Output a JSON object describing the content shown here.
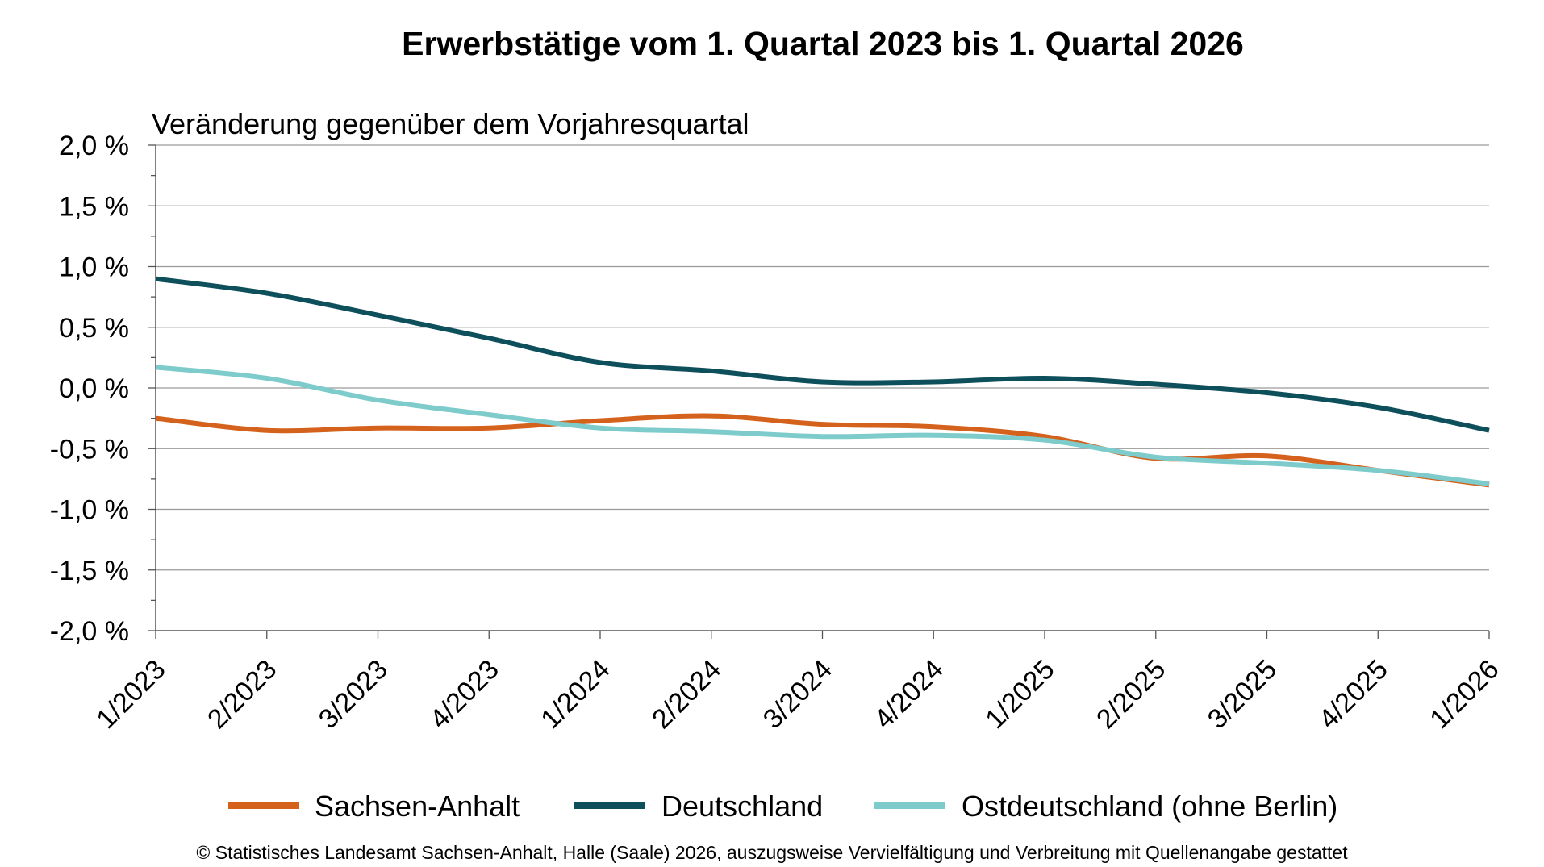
{
  "chart_data": {
    "type": "line",
    "title": "Erwerbstätige vom 1. Quartal 2023 bis 1. Quartal 2026",
    "subtitle": "Veränderung gegenüber dem Vorjahresquartal",
    "xlabel": "",
    "ylabel": "",
    "categories": [
      "1/2023",
      "2/2023",
      "3/2023",
      "4/2023",
      "1/2024",
      "2/2024",
      "3/2024",
      "4/2024",
      "1/2025",
      "2/2025",
      "3/2025",
      "4/2025",
      "1/2026"
    ],
    "ylim": [
      -2.0,
      2.0
    ],
    "yticks": [
      2.0,
      1.5,
      1.0,
      0.5,
      0.0,
      -0.5,
      -1.0,
      -1.5,
      -2.0
    ],
    "ytick_labels": [
      "2,0 %",
      "1,5 %",
      "1,0 %",
      "0,5 %",
      "0,0 %",
      "-0,5 %",
      "-1,0 %",
      "-1,5 %",
      "-2,0 %"
    ],
    "grid": true,
    "legend_position": "bottom",
    "series": [
      {
        "name": "Sachsen-Anhalt",
        "color": "#d4621c",
        "values": [
          -0.25,
          -0.35,
          -0.33,
          -0.33,
          -0.27,
          -0.23,
          -0.3,
          -0.32,
          -0.4,
          -0.58,
          -0.56,
          -0.68,
          -0.8
        ]
      },
      {
        "name": "Deutschland",
        "color": "#0d4f5b",
        "values": [
          0.9,
          0.78,
          0.6,
          0.41,
          0.21,
          0.14,
          0.05,
          0.05,
          0.08,
          0.03,
          -0.04,
          -0.16,
          -0.35
        ]
      },
      {
        "name": "Ostdeutschland (ohne Berlin)",
        "color": "#7ecbcb",
        "values": [
          0.17,
          0.08,
          -0.1,
          -0.22,
          -0.33,
          -0.36,
          -0.4,
          -0.39,
          -0.43,
          -0.57,
          -0.62,
          -0.68,
          -0.79
        ]
      }
    ]
  },
  "footer": "© Statistisches Landesamt Sachsen-Anhalt, Halle (Saale) 2026, auszugsweise Vervielfältigung und Verbreitung mit Quellenangabe gestattet"
}
